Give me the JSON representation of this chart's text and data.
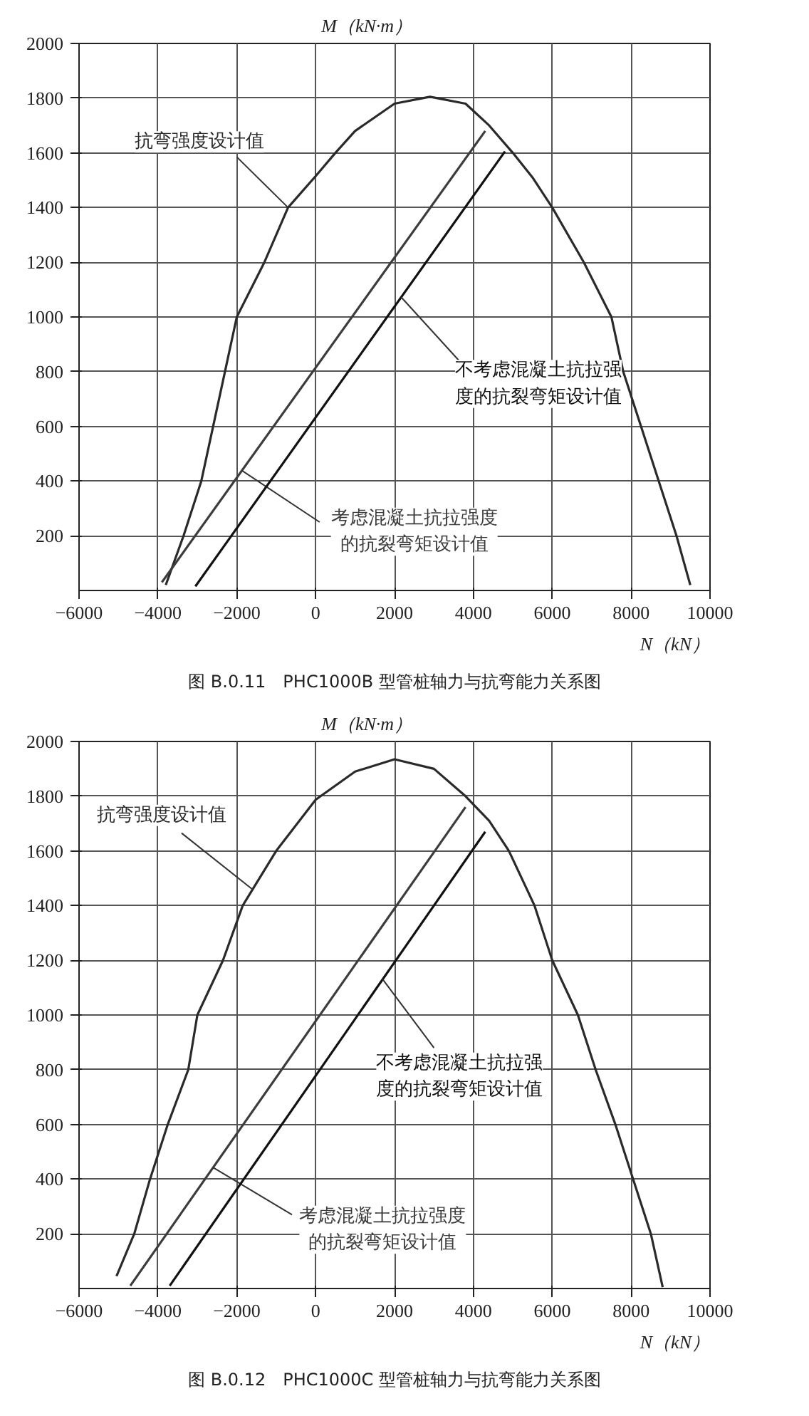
{
  "chart_data": [
    {
      "type": "line",
      "title": "图 B.0.11　PHC1000B 型管桩轴力与抗弯能力关系图",
      "xlabel": "N（kN）",
      "ylabel": "M（kN·m）",
      "xlim": [
        -6000,
        10000
      ],
      "ylim": [
        0,
        2000
      ],
      "xticks": [
        -6000,
        -4000,
        -2000,
        0,
        2000,
        4000,
        6000,
        8000,
        10000
      ],
      "yticks": [
        200,
        400,
        600,
        800,
        1000,
        1200,
        1400,
        1600,
        1800,
        2000
      ],
      "grid": true,
      "legend": false,
      "marker": "none",
      "line_style": "solid",
      "series": [
        {
          "name": "抗弯强度设计值",
          "color": "#2a2a2a",
          "x": [
            -3800,
            -3350,
            -2900,
            -2600,
            -2300,
            -2000,
            -1300,
            -700,
            0,
            500,
            1000,
            2000,
            2900,
            3800,
            4400,
            5000,
            5500,
            6000,
            6800,
            7500,
            7800,
            8250,
            8700,
            9150,
            9500
          ],
          "values": [
            20,
            200,
            400,
            600,
            800,
            1000,
            1200,
            1400,
            1515,
            1600,
            1680,
            1780,
            1805,
            1780,
            1700,
            1600,
            1510,
            1400,
            1200,
            1000,
            800,
            600,
            400,
            200,
            20
          ]
        },
        {
          "name": "考虑混凝土抗拉强度的抗裂弯矩设计值",
          "color": "#3c3c3c",
          "x": [
            -3900,
            4300
          ],
          "values": [
            30,
            1680
          ]
        },
        {
          "name": "不考虑混凝土抗拉强度的抗裂弯矩设计值",
          "color": "#111111",
          "x": [
            -3050,
            4800
          ],
          "values": [
            15,
            1605
          ]
        }
      ]
    },
    {
      "type": "line",
      "title": "图 B.0.12　PHC1000C 型管桩轴力与抗弯能力关系图",
      "xlabel": "N（kN）",
      "ylabel": "M（kN·m）",
      "xlim": [
        -6000,
        10000
      ],
      "ylim": [
        0,
        2000
      ],
      "xticks": [
        -6000,
        -4000,
        -2000,
        0,
        2000,
        4000,
        6000,
        8000,
        10000
      ],
      "yticks": [
        200,
        400,
        600,
        800,
        1000,
        1200,
        1400,
        1600,
        1800,
        2000
      ],
      "grid": true,
      "legend": false,
      "marker": "none",
      "line_style": "solid",
      "series": [
        {
          "name": "抗弯强度设计值",
          "color": "#2a2a2a",
          "x": [
            -5050,
            -4600,
            -4200,
            -3750,
            -3230,
            -3000,
            -2350,
            -1850,
            -1000,
            0,
            1000,
            2000,
            3000,
            3800,
            4400,
            4900,
            5550,
            6000,
            6650,
            7100,
            7600,
            8050,
            8500,
            8800
          ],
          "values": [
            45,
            200,
            400,
            600,
            800,
            1000,
            1200,
            1400,
            1600,
            1787,
            1890,
            1935,
            1900,
            1800,
            1710,
            1600,
            1400,
            1200,
            1000,
            800,
            600,
            400,
            200,
            5
          ]
        },
        {
          "name": "考虑混凝土抗拉强度的抗裂弯矩设计值",
          "color": "#3c3c3c",
          "x": [
            -4700,
            3800
          ],
          "values": [
            10,
            1760
          ]
        },
        {
          "name": "不考虑混凝土抗拉强度的抗裂弯矩设计值",
          "color": "#111111",
          "x": [
            -3700,
            4300
          ],
          "values": [
            10,
            1670
          ]
        }
      ]
    }
  ]
}
